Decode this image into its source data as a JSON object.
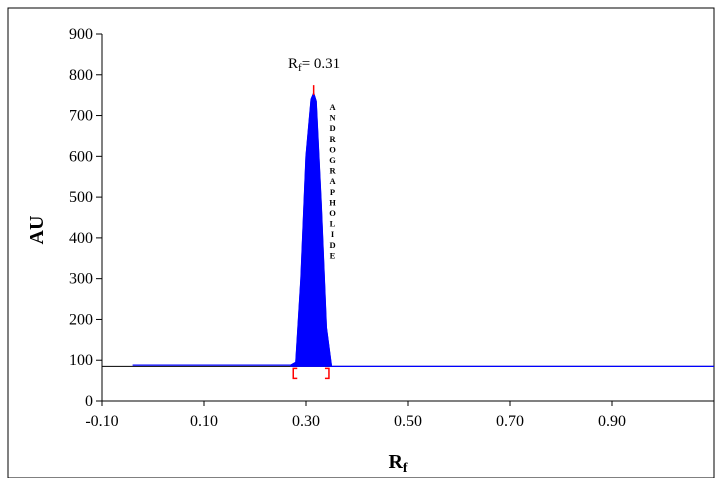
{
  "chart_data": {
    "type": "area",
    "xlabel": "R",
    "xlabel_sub": "f",
    "ylabel": "AU",
    "xlim": [
      -0.1,
      1.1
    ],
    "ylim": [
      0,
      900
    ],
    "x_ticks": [
      -0.1,
      0.1,
      0.3,
      0.5,
      0.7,
      0.9
    ],
    "x_tick_labels": [
      "-0.10",
      "0.10",
      "0.30",
      "0.50",
      "0.70",
      "0.90"
    ],
    "y_ticks": [
      0,
      100,
      200,
      300,
      400,
      500,
      600,
      700,
      800,
      900
    ],
    "y_tick_labels": [
      "0",
      "100",
      "200",
      "300",
      "400",
      "500",
      "600",
      "700",
      "800",
      "900"
    ],
    "grid": false,
    "baseline_au": 85,
    "baseline_x": [
      -0.1,
      1.1
    ],
    "trace_x": [
      -0.04,
      0.27,
      0.28,
      0.29,
      0.3,
      0.31,
      0.315,
      0.32,
      0.33,
      0.34,
      0.35,
      1.1
    ],
    "trace_y": [
      88,
      88,
      95,
      300,
      600,
      740,
      755,
      735,
      480,
      180,
      85,
      85
    ],
    "peak": {
      "label_main": "R",
      "label_sub": "f",
      "label_value": "= 0.31",
      "rf": 0.31,
      "height_au": 755,
      "start_rf": 0.275,
      "end_rf": 0.345,
      "compound_name": "ANDROGRAPHOLIDE",
      "fill_color": "#0000ff"
    },
    "marker_color": "#ff0000",
    "trace_color": "#0000ff",
    "baseline_color": "#000000"
  }
}
